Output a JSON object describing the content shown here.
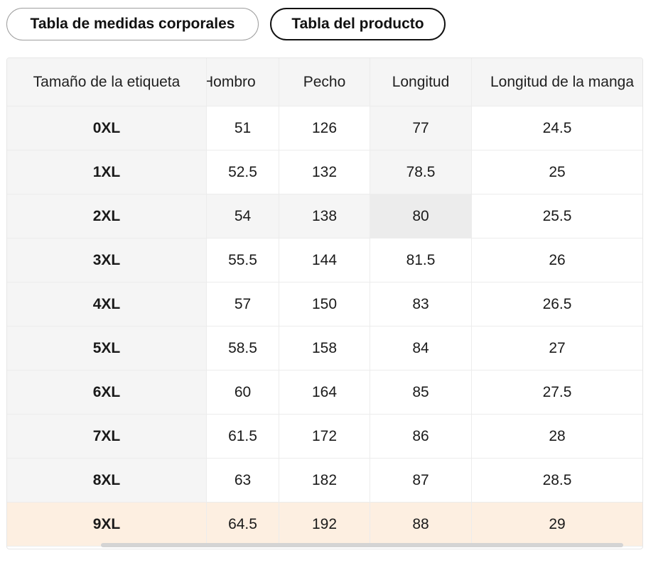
{
  "tabs": [
    {
      "label": "Tabla de medidas corporales"
    },
    {
      "label": "Tabla del producto"
    }
  ],
  "table": {
    "headers": [
      "Tamaño de la etiqueta",
      "Hombro",
      "Pecho",
      "Longitud",
      "Longitud de la manga"
    ],
    "rows": [
      [
        "0XL",
        "51",
        "126",
        "77",
        "24.5"
      ],
      [
        "1XL",
        "52.5",
        "132",
        "78.5",
        "25"
      ],
      [
        "2XL",
        "54",
        "138",
        "80",
        "25.5"
      ],
      [
        "3XL",
        "55.5",
        "144",
        "81.5",
        "26"
      ],
      [
        "4XL",
        "57",
        "150",
        "83",
        "26.5"
      ],
      [
        "5XL",
        "58.5",
        "158",
        "84",
        "27"
      ],
      [
        "6XL",
        "60",
        "164",
        "85",
        "27.5"
      ],
      [
        "7XL",
        "61.5",
        "172",
        "86",
        "28"
      ],
      [
        "8XL",
        "63",
        "182",
        "87",
        "28.5"
      ],
      [
        "9XL",
        "64.5",
        "192",
        "88",
        "29"
      ]
    ]
  },
  "colors": {
    "header_bg": "#f5f5f5",
    "hover_row_bg": "#f5f5f5",
    "hover_cell_bg": "#ececec",
    "highlight_row_bg": "#fdefe1"
  }
}
